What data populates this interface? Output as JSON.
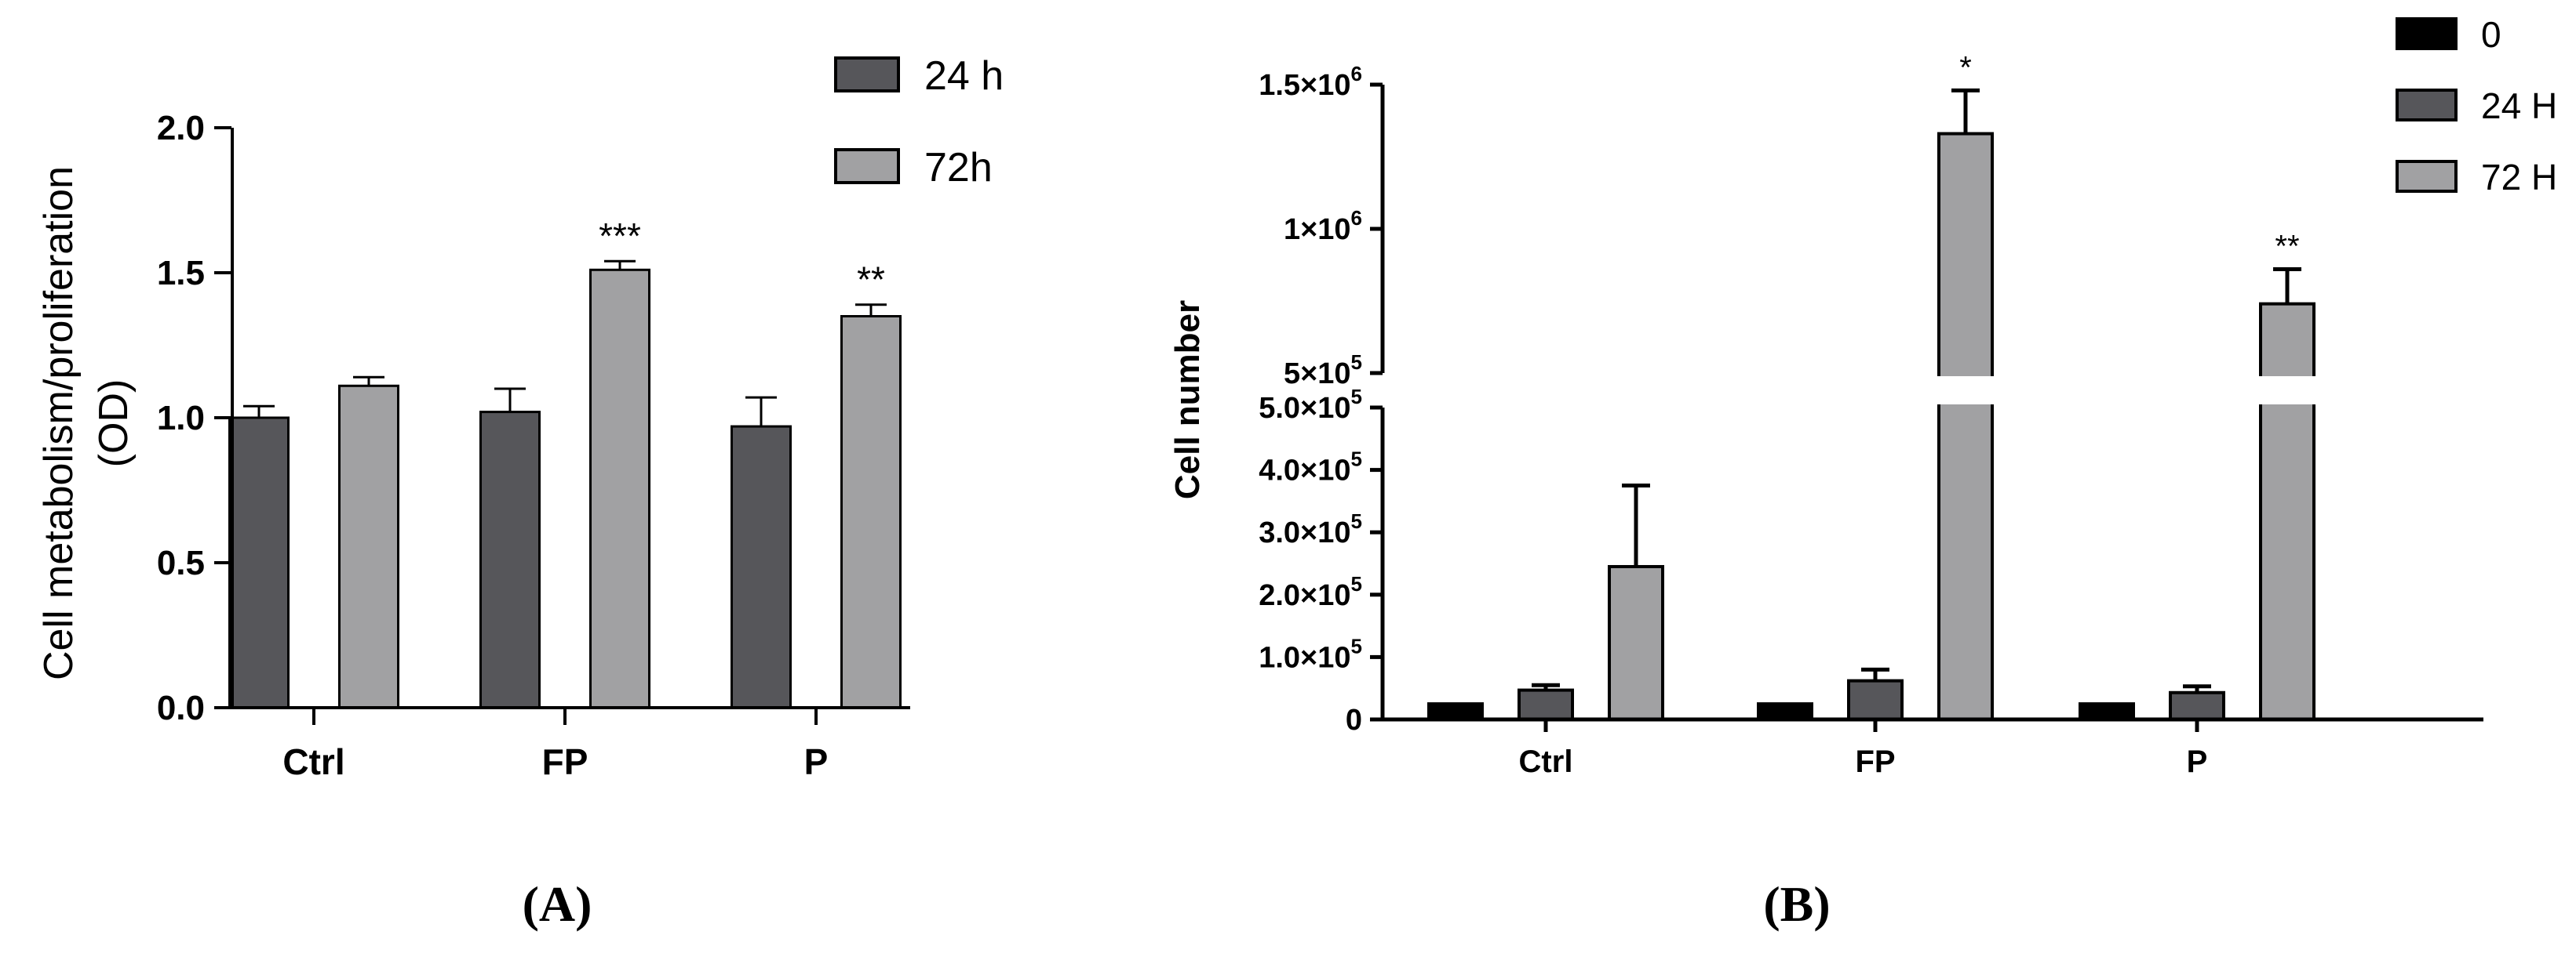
{
  "chart_data": [
    {
      "type": "bar",
      "panel_label": "(A)",
      "categories": [
        "Ctrl",
        "FP",
        "P"
      ],
      "ylabel_line1": "Cell metabolism/proliferation",
      "ylabel_line2": "(OD)",
      "ylim": [
        0,
        2.0
      ],
      "yticks": [
        0,
        0.5,
        1.0,
        1.5,
        2.0
      ],
      "ytick_labels": [
        "0.0",
        "0.5",
        "1.0",
        "1.5",
        "2.0"
      ],
      "legend_position": "top-right",
      "series": [
        {
          "name": "24 h",
          "color": "#56565a",
          "values": [
            1.0,
            1.02,
            0.97
          ],
          "errors": [
            0.04,
            0.08,
            0.1
          ]
        },
        {
          "name": "72h",
          "color": "#a1a1a3",
          "values": [
            1.11,
            1.51,
            1.35
          ],
          "errors": [
            0.03,
            0.03,
            0.04
          ]
        }
      ],
      "annotations": [
        {
          "series": 1,
          "category": 1,
          "text": "***"
        },
        {
          "series": 1,
          "category": 2,
          "text": "**"
        }
      ]
    },
    {
      "type": "bar",
      "panel_label": "(B)",
      "categories": [
        "Ctrl",
        "FP",
        "P"
      ],
      "ylabel": "Cell number",
      "axis_break": true,
      "lower_ylim": [
        0,
        500000
      ],
      "upper_ylim": [
        500000,
        1500000
      ],
      "yticks_lower": [
        0,
        100000,
        200000,
        300000,
        400000,
        500000
      ],
      "ytick_labels_lower": [
        {
          "base": "0",
          "exp": ""
        },
        {
          "base": "1.0×10",
          "exp": "5"
        },
        {
          "base": "2.0×10",
          "exp": "5"
        },
        {
          "base": "3.0×10",
          "exp": "5"
        },
        {
          "base": "4.0×10",
          "exp": "5"
        },
        {
          "base": "5.0×10",
          "exp": "5"
        }
      ],
      "yticks_upper": [
        500000,
        1000000,
        1500000
      ],
      "ytick_labels_upper": [
        {
          "base": "5×10",
          "exp": "5"
        },
        {
          "base": "1×10",
          "exp": "6"
        },
        {
          "base": "1.5×10",
          "exp": "6"
        }
      ],
      "legend_position": "top-right",
      "series": [
        {
          "name": "0",
          "color": "#000000",
          "values": [
            25000,
            25000,
            25000
          ],
          "errors": [
            0,
            0,
            0
          ]
        },
        {
          "name": "24 H",
          "color": "#56565a",
          "values": [
            47000,
            62000,
            43000
          ],
          "errors": [
            8000,
            18000,
            10000
          ]
        },
        {
          "name": "72 H",
          "color": "#a1a1a3",
          "values": [
            245000,
            1330000,
            740000
          ],
          "errors": [
            130000,
            150000,
            120000
          ]
        }
      ],
      "annotations": [
        {
          "series": 2,
          "category": 1,
          "text": "*"
        },
        {
          "series": 2,
          "category": 2,
          "text": "**"
        }
      ]
    }
  ]
}
